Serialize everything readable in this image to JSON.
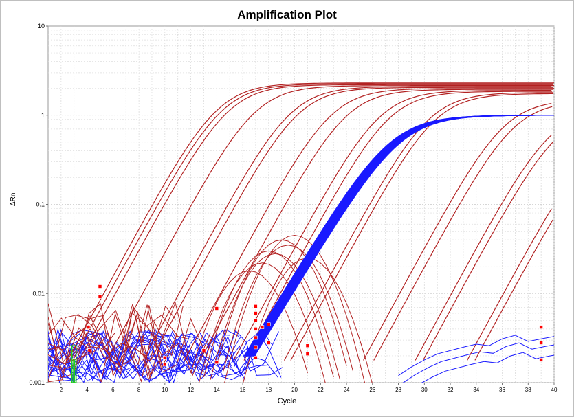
{
  "chart_data": {
    "type": "line",
    "title": "Amplification Plot",
    "xlabel": "Cycle",
    "ylabel": "ΔRn",
    "y_scale": "log",
    "xlim": [
      1,
      40
    ],
    "ylim": [
      0.001,
      10
    ],
    "x_ticks": [
      "2",
      "4",
      "6",
      "8",
      "10",
      "12",
      "14",
      "16",
      "18",
      "20",
      "22",
      "24",
      "26",
      "28",
      "30",
      "32",
      "34",
      "36",
      "38",
      "40"
    ],
    "y_ticks": [
      "0.001",
      "0.01",
      "0.1",
      "1",
      "10"
    ],
    "grid": true,
    "colors": {
      "red_series": "#b22222",
      "blue_series": "#1a1aff",
      "threshold_marker": "#ff0000",
      "baseline_marker": "#22cc22"
    },
    "sigmoid_red": [
      {
        "x0": 4.0,
        "ymax": 2.3
      },
      {
        "x0": 4.4,
        "ymax": 2.25
      },
      {
        "x0": 4.9,
        "ymax": 2.2
      },
      {
        "x0": 7.0,
        "ymax": 2.15
      },
      {
        "x0": 9.8,
        "ymax": 2.1
      },
      {
        "x0": 10.4,
        "ymax": 2.05
      },
      {
        "x0": 13.0,
        "ymax": 2.0
      },
      {
        "x0": 14.2,
        "ymax": 1.95
      },
      {
        "x0": 16.8,
        "ymax": 1.9
      },
      {
        "x0": 17.6,
        "ymax": 1.85
      },
      {
        "x0": 20.7,
        "ymax": 1.8
      },
      {
        "x0": 21.2,
        "ymax": 1.75
      },
      {
        "x0": 26.8,
        "ymax": 1.5
      },
      {
        "x0": 27.6,
        "ymax": 1.45
      },
      {
        "x0": 30.8,
        "ymax": 1.2
      },
      {
        "x0": 31.4,
        "ymax": 1.15
      },
      {
        "x0": 34.8,
        "ymax": 0.8
      },
      {
        "x0": 35.4,
        "ymax": 0.75
      }
    ],
    "blue_band": {
      "x0_start": 17.6,
      "x0_end": 18.4,
      "count": 20,
      "ymax": 1.0
    },
    "hump_red": [
      {
        "center": 19.0,
        "peak": 0.04
      },
      {
        "center": 19.5,
        "peak": 0.035
      },
      {
        "center": 18.5,
        "peak": 0.028
      },
      {
        "center": 20.0,
        "peak": 0.045
      },
      {
        "center": 17.5,
        "peak": 0.022
      },
      {
        "center": 18.0,
        "peak": 0.03
      },
      {
        "center": 21.0,
        "peak": 0.025
      },
      {
        "center": 16.5,
        "peak": 0.018
      }
    ],
    "late_blue_points": [
      [
        28,
        0.0012
      ],
      [
        29,
        0.0015
      ],
      [
        30,
        0.0018
      ],
      [
        31,
        0.0021
      ],
      [
        33,
        0.0025
      ],
      [
        34,
        0.0027
      ],
      [
        35,
        0.0026
      ],
      [
        36,
        0.0031
      ],
      [
        37,
        0.0034
      ],
      [
        38,
        0.0029
      ],
      [
        39,
        0.0031
      ],
      [
        40,
        0.0033
      ]
    ],
    "threshold_markers": [
      [
        4.1,
        0.0042
      ],
      [
        4.2,
        0.0023
      ],
      [
        5.0,
        0.012
      ],
      [
        5.0,
        0.0092
      ],
      [
        10.0,
        0.0019
      ],
      [
        10.0,
        0.0016
      ],
      [
        13.0,
        0.0023
      ],
      [
        14.0,
        0.0068
      ],
      [
        14.0,
        0.0017
      ],
      [
        17.0,
        0.0072
      ],
      [
        17.0,
        0.006
      ],
      [
        17.0,
        0.005
      ],
      [
        17.0,
        0.004
      ],
      [
        17.0,
        0.0032
      ],
      [
        17.0,
        0.0025
      ],
      [
        17.0,
        0.0019
      ],
      [
        17.5,
        0.0042
      ],
      [
        18.0,
        0.0045
      ],
      [
        18.0,
        0.0028
      ],
      [
        21.0,
        0.0026
      ],
      [
        21.0,
        0.0021
      ],
      [
        39.0,
        0.0042
      ],
      [
        39.0,
        0.0028
      ],
      [
        39.0,
        0.0018
      ]
    ],
    "baseline_marker": {
      "x": 3,
      "y_low": 0.001,
      "y_high": 0.0026
    }
  }
}
